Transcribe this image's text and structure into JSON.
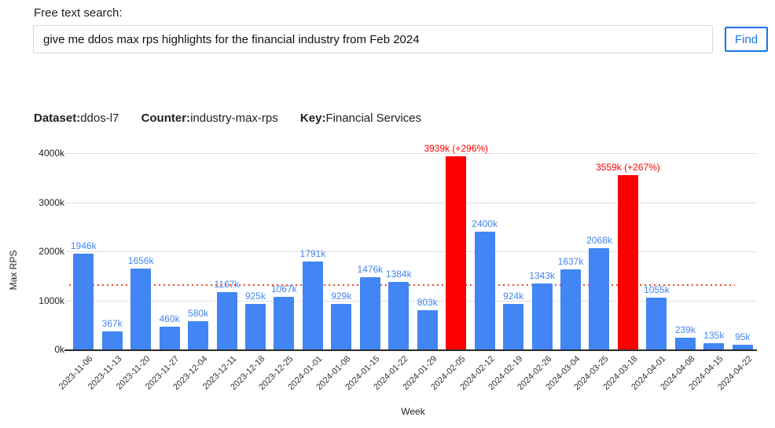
{
  "search": {
    "label": "Free text search:",
    "query": "give me ddos max rps highlights for the financial industry from Feb 2024",
    "button_label": "Find"
  },
  "meta": {
    "items": [
      {
        "label": "Dataset:",
        "value": "ddos-l7"
      },
      {
        "label": "Counter:",
        "value": "industry-max-rps"
      },
      {
        "label": "Key:",
        "value": "Financial Services"
      }
    ]
  },
  "chart_data": {
    "type": "bar",
    "title": "",
    "xlabel": "Week",
    "ylabel": "Max RPS",
    "ylim": [
      0,
      4000
    ],
    "grid": true,
    "yticks": [
      {
        "value": 0,
        "label": "0k"
      },
      {
        "value": 1000,
        "label": "1000k"
      },
      {
        "value": 2000,
        "label": "2000k"
      },
      {
        "value": 3000,
        "label": "3000k"
      },
      {
        "value": 4000,
        "label": "4000k"
      }
    ],
    "categories": [
      "2023-11-06",
      "2023-11-13",
      "2023-11-20",
      "2023-11-27",
      "2023-12-04",
      "2023-12-11",
      "2023-12-18",
      "2023-12-25",
      "2024-01-01",
      "2024-01-08",
      "2024-01-15",
      "2024-01-22",
      "2024-01-29",
      "2024-02-05",
      "2024-02-12",
      "2024-02-19",
      "2024-02-26",
      "2024-03-04",
      "2024-03-25",
      "2024-03-18",
      "2024-04-01",
      "2024-04-08",
      "2024-04-15",
      "2024-04-22"
    ],
    "values": [
      1946,
      367,
      1656,
      460,
      580,
      1167,
      925,
      1067,
      1791,
      929,
      1476,
      1384,
      803,
      3939,
      2400,
      924,
      1343,
      1637,
      2068,
      3559,
      1055,
      239,
      135,
      95
    ],
    "bar_labels": [
      "1946k",
      "367k",
      "1656k",
      "460k",
      "580k",
      "1167k",
      "925k",
      "1067k",
      "1791k",
      "929k",
      "1476k",
      "1384k",
      "803k",
      "3939k",
      "2400k",
      "924k",
      "1343k",
      "1637k",
      "2068k",
      "3559k",
      "1055k",
      "239k",
      "135k",
      "95k"
    ],
    "highlights": [
      {
        "index": 13,
        "annotation": "3939k (+296%)"
      },
      {
        "index": 19,
        "annotation": "3559k (+267%)"
      }
    ],
    "baseline": {
      "value": 1330,
      "style": "dotted"
    },
    "colors": {
      "bar": "#4285f4",
      "highlight": "#ff0000",
      "value_label": "#4285f4",
      "annotation": "#ff0000",
      "baseline": "#f4442e",
      "gridline": "#e0e0e0",
      "axis": "#2b2b2b"
    }
  }
}
